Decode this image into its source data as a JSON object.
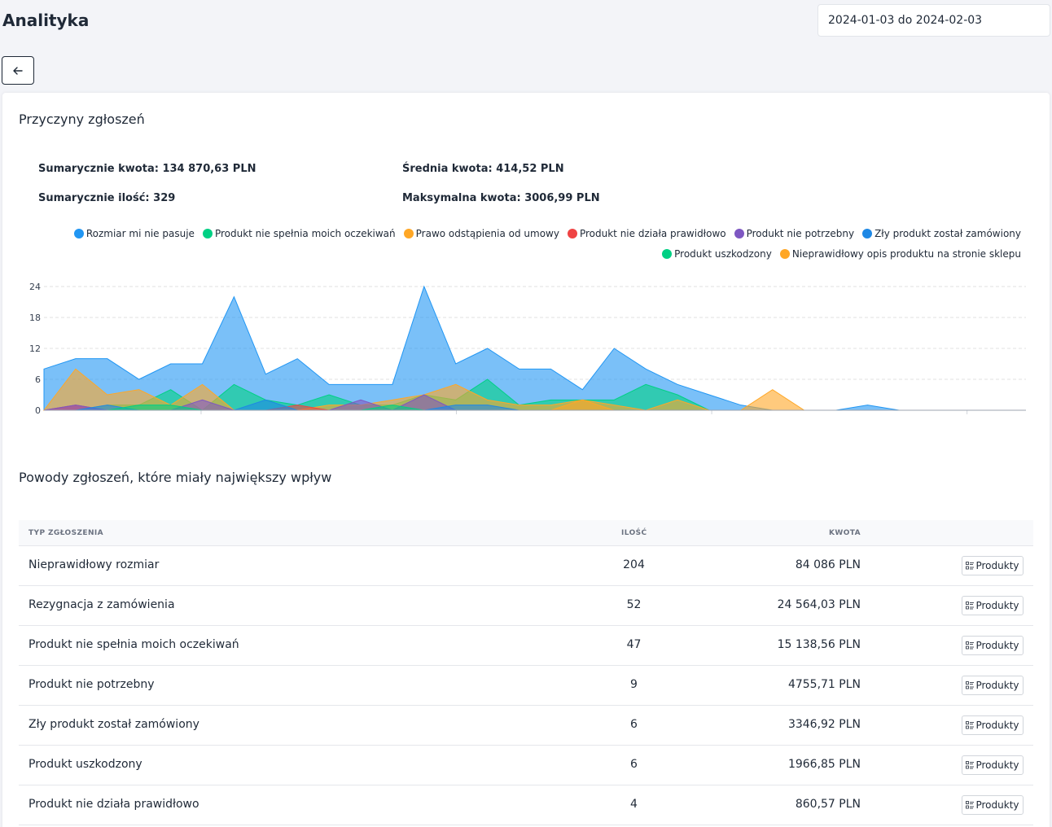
{
  "header": {
    "title": "Analityka",
    "date_range": "2024-01-03 do 2024-02-03"
  },
  "card": {
    "title": "Przyczyny zgłoszeń",
    "stats": {
      "sum_amount": "Sumarycznie kwota: 134 870,63 PLN",
      "avg_amount": "Średnia kwota: 414,52 PLN",
      "sum_count": "Sumarycznie ilość: 329",
      "max_amount": "Maksymalna kwota: 3006,99 PLN"
    }
  },
  "chart_data": {
    "type": "area",
    "ylim": [
      0,
      24
    ],
    "yticks": [
      "24",
      "18",
      "12",
      "6",
      "0"
    ],
    "x": [
      1,
      2,
      3,
      4,
      5,
      6,
      7,
      8,
      9,
      10,
      11,
      12,
      13,
      14,
      15,
      16,
      17,
      18,
      19,
      20,
      21,
      22,
      23,
      24,
      25,
      26,
      27,
      28,
      29,
      30,
      31,
      32
    ],
    "series": [
      {
        "name": "Rozmiar mi nie pasuje",
        "color": "#2196f3",
        "values": [
          8,
          10,
          10,
          6,
          9,
          9,
          22,
          7,
          10,
          5,
          5,
          5,
          24,
          9,
          12,
          8,
          8,
          4,
          12,
          8,
          5,
          3,
          1,
          0,
          0,
          0,
          1,
          0,
          0,
          0,
          0,
          0
        ]
      },
      {
        "name": "Produkt nie spełnia moich oczekiwań",
        "color": "#00d084",
        "values": [
          0,
          0,
          1,
          1,
          4,
          0,
          5,
          2,
          1,
          3,
          1,
          1,
          3,
          2,
          6,
          1,
          2,
          2,
          2,
          5,
          3,
          0,
          0,
          0,
          0,
          0,
          0,
          0,
          0,
          0,
          0,
          0
        ]
      },
      {
        "name": "Prawo odstąpienia od umowy",
        "color": "#ffa726",
        "values": [
          0,
          8,
          3,
          4,
          1,
          5,
          0,
          0,
          0,
          1,
          1,
          2,
          3,
          5,
          2,
          1,
          1,
          2,
          1,
          0,
          2,
          0,
          0,
          4,
          0,
          0,
          0,
          0,
          0,
          0,
          0,
          0
        ]
      },
      {
        "name": "Produkt nie działa prawidłowo",
        "color": "#ef4444",
        "values": [
          0,
          1,
          0,
          0,
          0,
          0,
          0,
          0,
          1,
          0,
          0,
          0,
          0,
          0,
          0,
          0,
          0,
          0,
          0,
          0,
          0,
          0,
          0,
          0,
          0,
          0,
          0,
          0,
          0,
          0,
          0,
          0
        ]
      },
      {
        "name": "Produkt nie potrzebny",
        "color": "#7e57c2",
        "values": [
          0,
          1,
          0,
          0,
          0,
          2,
          0,
          0,
          0,
          0,
          2,
          0,
          3,
          0,
          0,
          0,
          0,
          0,
          0,
          0,
          0,
          0,
          0,
          0,
          0,
          0,
          0,
          0,
          0,
          0,
          0,
          0
        ]
      },
      {
        "name": "Zły produkt został zamówiony",
        "color": "#1e88e5",
        "values": [
          0,
          0,
          1,
          0,
          0,
          0,
          0,
          2,
          0,
          0,
          0,
          0,
          0,
          1,
          1,
          0,
          0,
          0,
          0,
          0,
          0,
          0,
          0,
          0,
          0,
          0,
          0,
          0,
          0,
          0,
          0,
          0
        ]
      },
      {
        "name": "Produkt uszkodzony",
        "color": "#00d084",
        "values": [
          0,
          0,
          0,
          1,
          1,
          0,
          0,
          0,
          0,
          0,
          0,
          1,
          0,
          0,
          0,
          0,
          0,
          0,
          0,
          0,
          0,
          0,
          0,
          0,
          0,
          0,
          0,
          0,
          0,
          0,
          0,
          0
        ]
      },
      {
        "name": "Nieprawidłowy opis produktu na stronie sklepu",
        "color": "#ffa726",
        "values": [
          0,
          0,
          0,
          0,
          0,
          0,
          0,
          0,
          0,
          0,
          0,
          0,
          0,
          0,
          0,
          0,
          0,
          2,
          0,
          0,
          0,
          0,
          0,
          0,
          0,
          0,
          0,
          0,
          0,
          0,
          0,
          0
        ]
      }
    ]
  },
  "section2": {
    "title": "Powody zgłoszeń, które miały największy wpływ"
  },
  "table": {
    "headers": {
      "type": "TYP ZGŁOSZENIA",
      "qty": "ILOŚĆ",
      "amount": "KWOTA"
    },
    "button_label": "Produkty",
    "rows": [
      {
        "type": "Nieprawidłowy rozmiar",
        "qty": "204",
        "amount": "84 086 PLN"
      },
      {
        "type": "Rezygnacja z zamówienia",
        "qty": "52",
        "amount": "24 564,03 PLN"
      },
      {
        "type": "Produkt nie spełnia moich oczekiwań",
        "qty": "47",
        "amount": "15 138,56 PLN"
      },
      {
        "type": "Produkt nie potrzebny",
        "qty": "9",
        "amount": "4755,71 PLN"
      },
      {
        "type": "Zły produkt został zamówiony",
        "qty": "6",
        "amount": "3346,92 PLN"
      },
      {
        "type": "Produkt uszkodzony",
        "qty": "6",
        "amount": "1966,85 PLN"
      },
      {
        "type": "Produkt nie działa prawidłowo",
        "qty": "4",
        "amount": "860,57 PLN"
      }
    ]
  }
}
